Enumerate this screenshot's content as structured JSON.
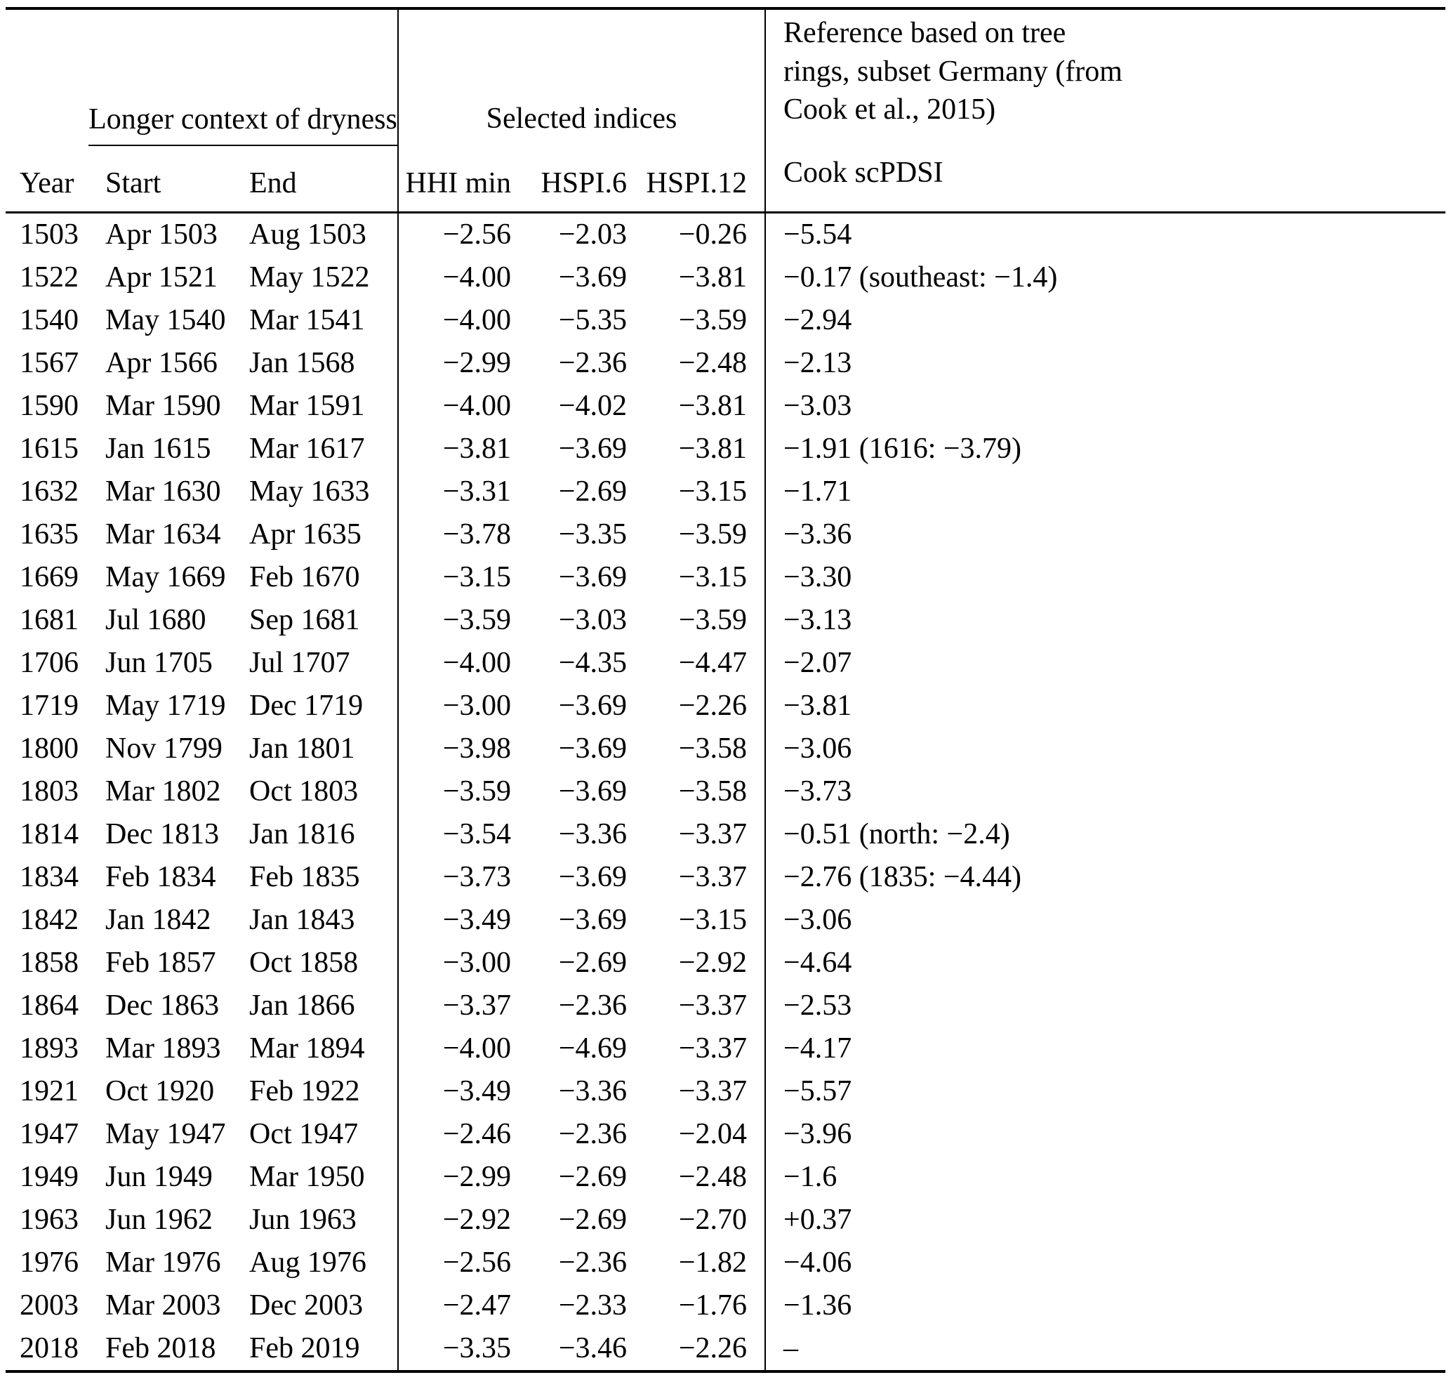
{
  "page": {
    "background": "#ffffff",
    "text_color": "#000000"
  },
  "table": {
    "group_headers": {
      "dryness": "Longer context of dryness",
      "indices": "Selected indices"
    },
    "reference_lines": [
      "Reference based on tree",
      "rings, subset Germany (from",
      "Cook et al., 2015)"
    ],
    "column_headers": [
      "Year",
      "Start",
      "End",
      "HHI min",
      "HSPI.6",
      "HSPI.12",
      "Cook scPDSI"
    ],
    "rows": [
      [
        "1503",
        "Apr 1503",
        "Aug 1503",
        "−2.56",
        "−2.03",
        "−0.26",
        "−5.54"
      ],
      [
        "1522",
        "Apr 1521",
        "May 1522",
        "−4.00",
        "−3.69",
        "−3.81",
        "−0.17 (southeast: −1.4)"
      ],
      [
        "1540",
        "May 1540",
        "Mar 1541",
        "−4.00",
        "−5.35",
        "−3.59",
        "−2.94"
      ],
      [
        "1567",
        "Apr 1566",
        "Jan 1568",
        "−2.99",
        "−2.36",
        "−2.48",
        "−2.13"
      ],
      [
        "1590",
        "Mar 1590",
        "Mar 1591",
        "−4.00",
        "−4.02",
        "−3.81",
        "−3.03"
      ],
      [
        "1615",
        "Jan 1615",
        "Mar 1617",
        "−3.81",
        "−3.69",
        "−3.81",
        "−1.91 (1616: −3.79)"
      ],
      [
        "1632",
        "Mar 1630",
        "May 1633",
        "−3.31",
        "−2.69",
        "−3.15",
        "−1.71"
      ],
      [
        "1635",
        "Mar 1634",
        "Apr 1635",
        "−3.78",
        "−3.35",
        "−3.59",
        "−3.36"
      ],
      [
        "1669",
        "May 1669",
        "Feb 1670",
        "−3.15",
        "−3.69",
        "−3.15",
        "−3.30"
      ],
      [
        "1681",
        "Jul 1680",
        "Sep 1681",
        "−3.59",
        "−3.03",
        "−3.59",
        "−3.13"
      ],
      [
        "1706",
        "Jun 1705",
        "Jul 1707",
        "−4.00",
        "−4.35",
        "−4.47",
        "−2.07"
      ],
      [
        "1719",
        "May 1719",
        "Dec 1719",
        "−3.00",
        "−3.69",
        "−2.26",
        "−3.81"
      ],
      [
        "1800",
        "Nov 1799",
        "Jan 1801",
        "−3.98",
        "−3.69",
        "−3.58",
        "−3.06"
      ],
      [
        "1803",
        "Mar 1802",
        "Oct 1803",
        "−3.59",
        "−3.69",
        "−3.58",
        "−3.73"
      ],
      [
        "1814",
        "Dec 1813",
        "Jan 1816",
        "−3.54",
        "−3.36",
        "−3.37",
        "−0.51 (north: −2.4)"
      ],
      [
        "1834",
        "Feb 1834",
        "Feb 1835",
        "−3.73",
        "−3.69",
        "−3.37",
        "−2.76 (1835: −4.44)"
      ],
      [
        "1842",
        "Jan 1842",
        "Jan 1843",
        "−3.49",
        "−3.69",
        "−3.15",
        "−3.06"
      ],
      [
        "1858",
        "Feb 1857",
        "Oct 1858",
        "−3.00",
        "−2.69",
        "−2.92",
        "−4.64"
      ],
      [
        "1864",
        "Dec 1863",
        "Jan 1866",
        "−3.37",
        "−2.36",
        "−3.37",
        "−2.53"
      ],
      [
        "1893",
        "Mar 1893",
        "Mar 1894",
        "−4.00",
        "−4.69",
        "−3.37",
        "−4.17"
      ],
      [
        "1921",
        "Oct 1920",
        "Feb 1922",
        "−3.49",
        "−3.36",
        "−3.37",
        "−5.57"
      ],
      [
        "1947",
        "May 1947",
        "Oct 1947",
        "−2.46",
        "−2.36",
        "−2.04",
        "−3.96"
      ],
      [
        "1949",
        "Jun 1949",
        "Mar 1950",
        "−2.99",
        "−2.69",
        "−2.48",
        "−1.6"
      ],
      [
        "1963",
        "Jun 1962",
        "Jun 1963",
        "−2.92",
        "−2.69",
        "−2.70",
        "+0.37"
      ],
      [
        "1976",
        "Mar 1976",
        "Aug 1976",
        "−2.56",
        "−2.36",
        "−1.82",
        "−4.06"
      ],
      [
        "2003",
        "Mar 2003",
        "Dec 2003",
        "−2.47",
        "−2.33",
        "−1.76",
        "−1.36"
      ],
      [
        "2018",
        "Feb 2018",
        "Feb 2019",
        "−3.35",
        "−3.46",
        "−2.26",
        "–"
      ]
    ]
  }
}
